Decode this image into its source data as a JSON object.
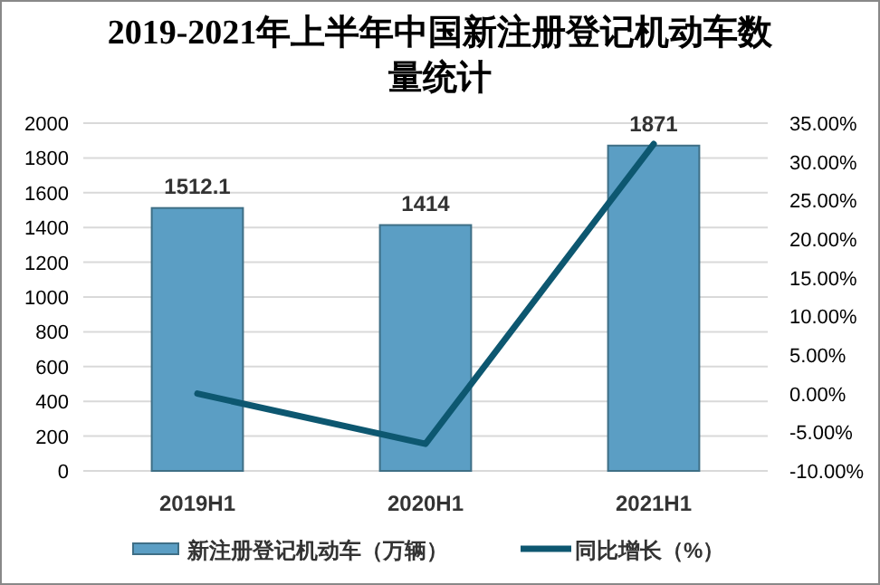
{
  "chart_data": {
    "type": "bar",
    "title": "2019-2021年上半年中国新注册登记机动车数量统计",
    "categories": [
      "2019H1",
      "2020H1",
      "2021H1"
    ],
    "series": [
      {
        "name": "新注册登记机动车（万辆）",
        "color": "#5b9ec4",
        "values": [
          1512.1,
          1414,
          1871
        ],
        "data_labels": true
      },
      {
        "name": "同比增长（%）",
        "type": "line",
        "axis": "y2",
        "color": "#0d5770",
        "values": [
          0,
          -6.5,
          32.3
        ]
      }
    ],
    "ylim": [
      0,
      2000
    ],
    "yticks": [
      0,
      200,
      400,
      600,
      800,
      1000,
      1200,
      1400,
      1600,
      1800,
      2000
    ],
    "y2lim": [
      -10,
      35
    ],
    "y2ticks": [
      {
        "value": -10,
        "label": "-10.00%"
      },
      {
        "value": -5,
        "label": "-5.00%"
      },
      {
        "value": 0,
        "label": "0.00%"
      },
      {
        "value": 5,
        "label": "5.00%"
      },
      {
        "value": 10,
        "label": "10.00%"
      },
      {
        "value": 15,
        "label": "15.00%"
      },
      {
        "value": 20,
        "label": "20.00%"
      },
      {
        "value": 25,
        "label": "25.00%"
      },
      {
        "value": 30,
        "label": "30.00%"
      },
      {
        "value": 35,
        "label": "35.00%"
      }
    ],
    "grid": "y",
    "legend": "bottom",
    "marker": "none"
  }
}
